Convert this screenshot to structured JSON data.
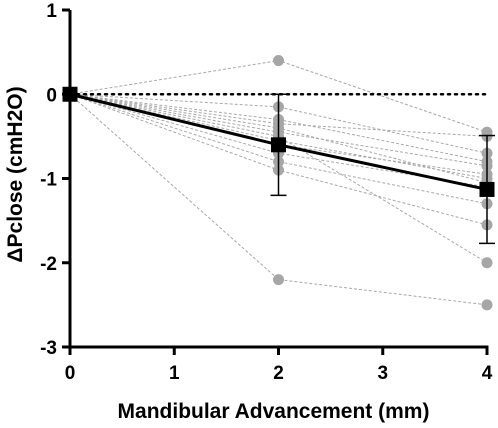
{
  "chart_data": {
    "type": "line",
    "title": "",
    "xlabel": "Mandibular Advancement (mm)",
    "ylabel": "ΔPclose (cmH2O)",
    "xlim": [
      0,
      4
    ],
    "ylim": [
      -3,
      1
    ],
    "x_ticks": [
      0,
      1,
      2,
      3,
      4
    ],
    "y_ticks": [
      1,
      0,
      -1,
      -2,
      -3
    ],
    "x_tick_labels": [
      "0",
      "1",
      "2",
      "3",
      "4"
    ],
    "y_tick_labels": [
      "1",
      "0",
      "-1",
      "-2",
      "-3"
    ],
    "grid": false,
    "reference_line": {
      "y": 0,
      "style": "dotted"
    },
    "x": [
      0,
      2,
      4
    ],
    "mean_series": {
      "values": [
        0,
        -0.6,
        -1.13
      ],
      "error": [
        0,
        0.6,
        0.64
      ],
      "marker": "square",
      "color": "#000000"
    },
    "individual_series": [
      [
        0,
        0.4,
        -0.45
      ],
      [
        0,
        -0.15,
        -0.7
      ],
      [
        0,
        -0.3,
        -0.8
      ],
      [
        0,
        -0.35,
        -0.5
      ],
      [
        0,
        -0.45,
        -0.85
      ],
      [
        0,
        -0.55,
        -1.0
      ],
      [
        0,
        -0.6,
        -0.95
      ],
      [
        0,
        -0.7,
        -1.1
      ],
      [
        0,
        -0.8,
        -1.3
      ],
      [
        0,
        -0.9,
        -1.55
      ],
      [
        0,
        -0.4,
        -1.05
      ],
      [
        0,
        -0.5,
        -2.0
      ],
      [
        0,
        -2.2,
        -2.5
      ]
    ],
    "individual_color": "#a6a6a6"
  }
}
